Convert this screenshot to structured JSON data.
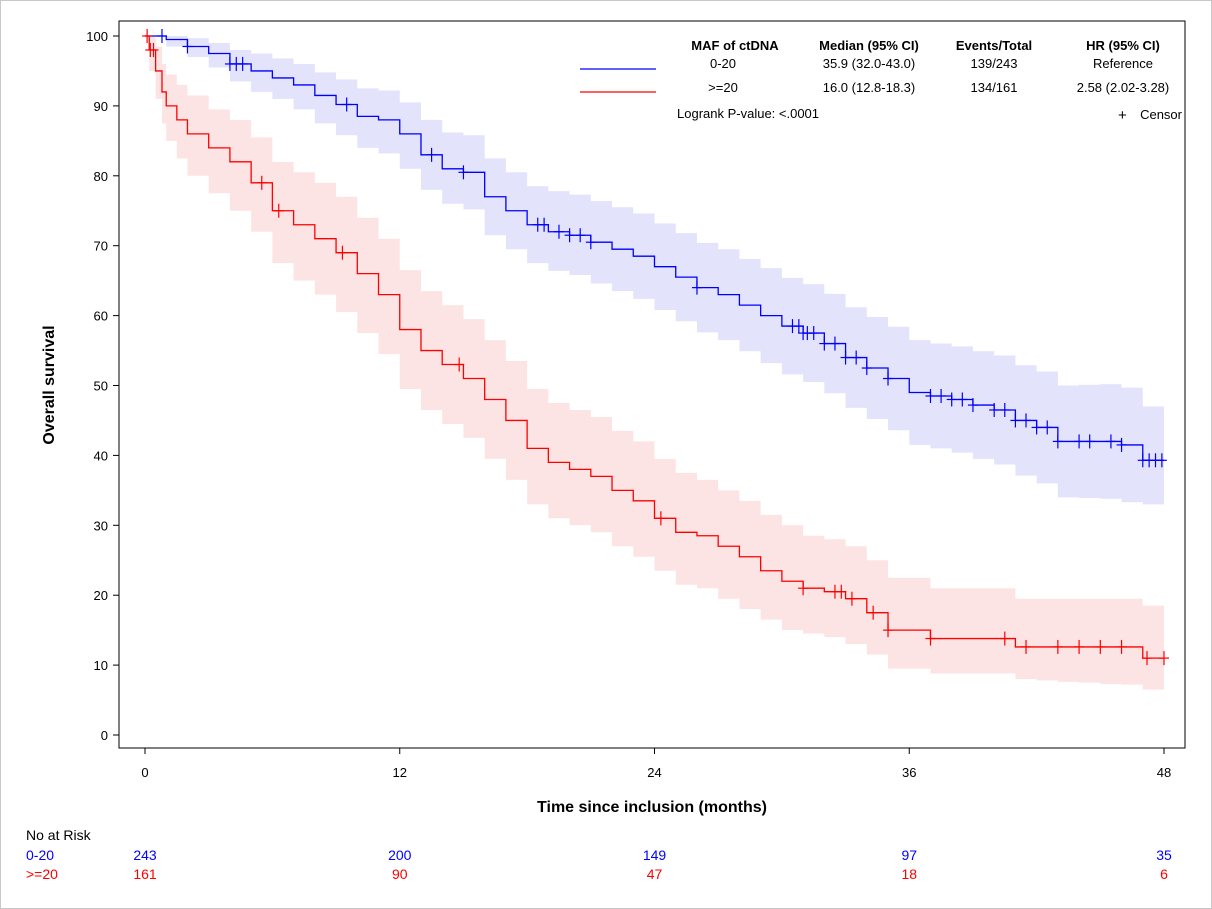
{
  "chart_data": {
    "type": "line",
    "subtype": "kaplan-meier",
    "xlabel": "Time since inclusion (months)",
    "ylabel": "Overall survival",
    "xlim": [
      0,
      48
    ],
    "ylim": [
      0,
      100
    ],
    "xticks": [
      0,
      12,
      24,
      36,
      48
    ],
    "yticks": [
      0,
      10,
      20,
      30,
      40,
      50,
      60,
      70,
      80,
      90,
      100
    ],
    "grid": false,
    "legend": {
      "placement": "top-right",
      "headers": [
        "MAF of ctDNA",
        "Median (95% CI)",
        "Events/Total",
        "HR (95% CI)"
      ],
      "logrank": "Logrank P-value: <.0001",
      "censor_label": "Censor",
      "censor_symbol": "+"
    },
    "series": [
      {
        "name": "0-20",
        "color": "#0000ff",
        "band_color": "#e3e3fb",
        "median": "35.9 (32.0-43.0)",
        "events_total": "139/243",
        "hr": "Reference",
        "x": [
          0,
          1,
          2,
          3,
          4,
          5,
          6,
          7,
          8,
          9,
          10,
          11,
          12,
          13,
          14,
          15,
          16,
          17,
          18,
          19,
          20,
          21,
          22,
          23,
          24,
          25,
          26,
          27,
          28,
          29,
          30,
          31,
          32,
          33,
          34,
          35,
          36,
          37,
          38,
          39,
          40,
          41,
          42,
          43,
          44,
          45,
          46,
          47,
          48
        ],
        "y": [
          100,
          99.5,
          98.5,
          97.5,
          96,
          95,
          94,
          93,
          91.5,
          90.2,
          88.5,
          88,
          86,
          83,
          81,
          80.5,
          77,
          75,
          73,
          72,
          71.5,
          70.5,
          69.5,
          68.5,
          67,
          65.5,
          64,
          63,
          61.5,
          60,
          58.5,
          57.5,
          56,
          54,
          52.5,
          51,
          49,
          48.5,
          48,
          47.2,
          46.5,
          45,
          44,
          42,
          42,
          42,
          41.5,
          39.3,
          39.3
        ],
        "lower": [
          100,
          98.5,
          97,
          95.5,
          93.5,
          92,
          91,
          89.5,
          87.5,
          85.8,
          84,
          83.2,
          81,
          78,
          76,
          75.2,
          71.5,
          69.5,
          67.5,
          66.4,
          65.8,
          64.6,
          63.5,
          62.4,
          60.8,
          59.2,
          57.6,
          56.5,
          54.9,
          53.2,
          51.6,
          50.5,
          48.9,
          46.8,
          45.2,
          43.6,
          41.5,
          41,
          40.4,
          39.5,
          38.7,
          37.1,
          36,
          34,
          33.9,
          33.8,
          33.3,
          33,
          33
        ],
        "upper": [
          100,
          100,
          99.7,
          99,
          98,
          97.5,
          96.8,
          96,
          94.8,
          93.8,
          92.5,
          92.2,
          90.5,
          88,
          86.2,
          85.8,
          82.5,
          80.5,
          78.5,
          77.8,
          77.3,
          76.4,
          75.5,
          74.6,
          73.2,
          71.8,
          70.4,
          69.5,
          68.1,
          66.8,
          65.4,
          64.5,
          63.1,
          61.2,
          59.8,
          58.4,
          56.5,
          56,
          55.6,
          54.9,
          54.3,
          52.9,
          52,
          50,
          50.1,
          50.2,
          49.7,
          47,
          47
        ],
        "censor_x": [
          0.8,
          2,
          4,
          4.3,
          4.6,
          9.5,
          13.5,
          15,
          18.5,
          18.8,
          19.5,
          20,
          20.5,
          21,
          26,
          30.5,
          30.8,
          31,
          31.2,
          31.5,
          32,
          32.5,
          33,
          33.5,
          34,
          35,
          37,
          37.5,
          38,
          38.5,
          39,
          40,
          40.5,
          41,
          41.5,
          42,
          42.5,
          43,
          44,
          44.5,
          45.5,
          46,
          47,
          47.3,
          47.6,
          47.9
        ]
      },
      {
        "name": ">=20",
        "color": "#ff0000",
        "band_color": "#fde4e4",
        "median": "16.0 (12.8-18.3)",
        "events_total": "134/161",
        "hr": "2.58 (2.02-3.28)",
        "x": [
          0,
          0.2,
          0.5,
          0.8,
          1,
          1.5,
          2,
          3,
          4,
          5,
          6,
          7,
          8,
          9,
          10,
          11,
          12,
          13,
          14,
          15,
          16,
          17,
          18,
          19,
          20,
          21,
          22,
          23,
          24,
          25,
          26,
          27,
          28,
          29,
          30,
          31,
          32,
          33,
          34,
          35,
          36,
          37,
          38,
          39,
          40,
          41,
          42,
          43,
          44,
          45,
          46,
          47,
          48
        ],
        "y": [
          100,
          98,
          95,
          92,
          90,
          88,
          86,
          84,
          82,
          79,
          75,
          73,
          71,
          69,
          66,
          63,
          58,
          55,
          53,
          51,
          48,
          45,
          41,
          39,
          38,
          37,
          35,
          33.5,
          31,
          29,
          28.5,
          27,
          25.5,
          23.5,
          22,
          21,
          20.5,
          19.5,
          17.5,
          15,
          15,
          13.8,
          13.8,
          13.8,
          13.8,
          12.6,
          12.6,
          12.6,
          12.6,
          12.6,
          12.6,
          11,
          11
        ],
        "lower": [
          100,
          95,
          91,
          87.5,
          85,
          82.5,
          80,
          77.5,
          75,
          72,
          67.5,
          65,
          63,
          60.5,
          57.5,
          54.5,
          49.5,
          46.5,
          44.5,
          42.5,
          39.5,
          36.5,
          33,
          31,
          30,
          29,
          27,
          25.5,
          23.5,
          21.5,
          21,
          19.5,
          18,
          16.5,
          15,
          14.5,
          14,
          13,
          11.5,
          9.5,
          9.5,
          8.8,
          8.8,
          8.8,
          8.8,
          8,
          7.8,
          7.6,
          7.5,
          7.3,
          7.2,
          6.5,
          6.5
        ],
        "upper": [
          100,
          100,
          98.5,
          96,
          94.5,
          93,
          91.5,
          89.5,
          88,
          85.5,
          82,
          80.5,
          79,
          77,
          74,
          71,
          66.5,
          63.5,
          61.5,
          59.5,
          56.5,
          53.5,
          49.5,
          47.5,
          46.5,
          45.5,
          43.5,
          42,
          39.5,
          37.5,
          36.5,
          35,
          33.5,
          31.5,
          30,
          28.5,
          28,
          27,
          25,
          22.5,
          22.5,
          21,
          21,
          21,
          21,
          19.5,
          19.5,
          19.5,
          19.5,
          19.5,
          19.5,
          18.5,
          18.5
        ],
        "censor_x": [
          0.1,
          0.25,
          0.4,
          5.5,
          6.3,
          9.3,
          14.8,
          24.3,
          31,
          32.5,
          32.8,
          33.3,
          34.3,
          35,
          37,
          40.5,
          41.5,
          43,
          44,
          45,
          46,
          47.2,
          48
        ]
      }
    ],
    "risk_table": {
      "title": "No at Risk",
      "times": [
        0,
        12,
        24,
        36,
        48
      ],
      "rows": [
        {
          "label": "0-20",
          "color": "#0000ff",
          "values": [
            "243",
            "200",
            "149",
            "97",
            "35"
          ]
        },
        {
          "label": ">=20",
          "color": "#ff0000",
          "values": [
            "161",
            "90",
            "47",
            "18",
            "6"
          ]
        }
      ]
    }
  }
}
